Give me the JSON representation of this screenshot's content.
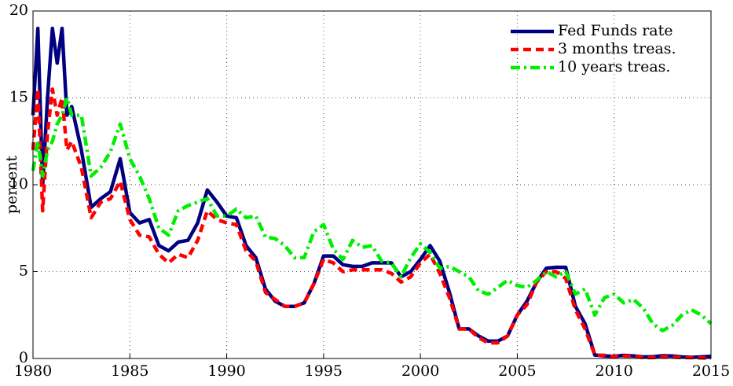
{
  "chart_data": {
    "type": "line",
    "y_label": "percent",
    "x": [
      1980,
      1980.25,
      1980.5,
      1980.75,
      1981,
      1981.25,
      1981.5,
      1981.75,
      1982,
      1982.5,
      1983,
      1983.5,
      1984,
      1984.5,
      1985,
      1985.5,
      1986,
      1986.5,
      1987,
      1987.5,
      1988,
      1988.5,
      1989,
      1989.5,
      1990,
      1990.5,
      1991,
      1991.5,
      1992,
      1992.5,
      1993,
      1993.5,
      1994,
      1994.5,
      1995,
      1995.5,
      1996,
      1996.5,
      1997,
      1997.5,
      1998,
      1998.5,
      1999,
      1999.5,
      2000,
      2000.5,
      2001,
      2001.5,
      2002,
      2002.5,
      2003,
      2003.5,
      2004,
      2004.5,
      2005,
      2005.5,
      2006,
      2006.5,
      2007,
      2007.5,
      2008,
      2008.5,
      2009,
      2009.5,
      2010,
      2010.5,
      2011,
      2011.5,
      2012,
      2012.5,
      2013,
      2013.5,
      2014,
      2014.5,
      2015
    ],
    "series": [
      {
        "name": "Fed Funds rate",
        "color": "#000080",
        "dash": "solid",
        "values": [
          14,
          19,
          10,
          15,
          19,
          17,
          19,
          14,
          14.5,
          12,
          8.7,
          9.2,
          9.6,
          11.5,
          8.4,
          7.8,
          8,
          6.5,
          6.2,
          6.7,
          6.8,
          7.8,
          9.7,
          9,
          8.2,
          8.1,
          6.5,
          5.8,
          4,
          3.3,
          3,
          3,
          3.2,
          4.3,
          5.9,
          5.9,
          5.4,
          5.3,
          5.3,
          5.5,
          5.5,
          5.5,
          4.7,
          5,
          5.7,
          6.5,
          5.6,
          3.8,
          1.7,
          1.7,
          1.3,
          1,
          1,
          1.3,
          2.5,
          3.3,
          4.4,
          5.2,
          5.25,
          5.25,
          3,
          2,
          0.2,
          0.15,
          0.12,
          0.18,
          0.15,
          0.09,
          0.1,
          0.16,
          0.14,
          0.09,
          0.07,
          0.09,
          0.12
        ]
      },
      {
        "name": "3 months treas.",
        "color": "#ff0000",
        "dash": "dashed",
        "values": [
          12,
          15.5,
          8.5,
          13,
          15.5,
          14,
          15,
          12,
          12.5,
          11,
          8.1,
          9,
          9.2,
          10.2,
          8,
          7.1,
          7,
          6,
          5.5,
          6,
          5.8,
          6.8,
          8.5,
          8,
          7.8,
          7.7,
          6.2,
          5.6,
          3.8,
          3.4,
          3,
          3,
          3.2,
          4.3,
          5.7,
          5.5,
          5,
          5.1,
          5.1,
          5.1,
          5.1,
          4.9,
          4.4,
          4.7,
          5.5,
          6,
          4.9,
          3.5,
          1.7,
          1.7,
          1.2,
          0.9,
          0.9,
          1.3,
          2.5,
          3.1,
          4.4,
          5,
          5,
          4.6,
          2.8,
          1.7,
          0.2,
          0.18,
          0.1,
          0.15,
          0.13,
          0.05,
          0.05,
          0.1,
          0.08,
          0.05,
          0.05,
          0.03,
          0.02
        ]
      },
      {
        "name": "10 years treas.",
        "color": "#00ee00",
        "dash": "dashdot",
        "values": [
          10.8,
          12.5,
          10.5,
          12,
          12.5,
          13.5,
          14,
          15,
          14,
          14,
          10.5,
          11,
          11.9,
          13.5,
          11.5,
          10.5,
          9.2,
          7.5,
          7.1,
          8.5,
          8.8,
          9,
          9.2,
          8.2,
          8.2,
          8.6,
          8.1,
          8.2,
          7,
          6.9,
          6.5,
          5.8,
          5.8,
          7.3,
          7.7,
          6.3,
          5.7,
          6.8,
          6.4,
          6.5,
          5.6,
          5.5,
          4.7,
          5.8,
          6.6,
          6.1,
          5.2,
          5.3,
          5,
          4.7,
          3.9,
          3.7,
          4.1,
          4.5,
          4.2,
          4.1,
          4.5,
          5,
          4.7,
          5,
          3.7,
          4,
          2.5,
          3.5,
          3.7,
          3.2,
          3.4,
          2.9,
          2,
          1.6,
          1.9,
          2.5,
          2.8,
          2.5,
          2
        ]
      }
    ],
    "xlim": [
      1980,
      2015
    ],
    "xticks": [
      1980,
      1985,
      1990,
      1995,
      2000,
      2005,
      2010,
      2015
    ],
    "ylim": [
      0,
      20
    ],
    "yticks": [
      0,
      5,
      10,
      15,
      20
    ],
    "grid": true,
    "legend": "upper right"
  }
}
